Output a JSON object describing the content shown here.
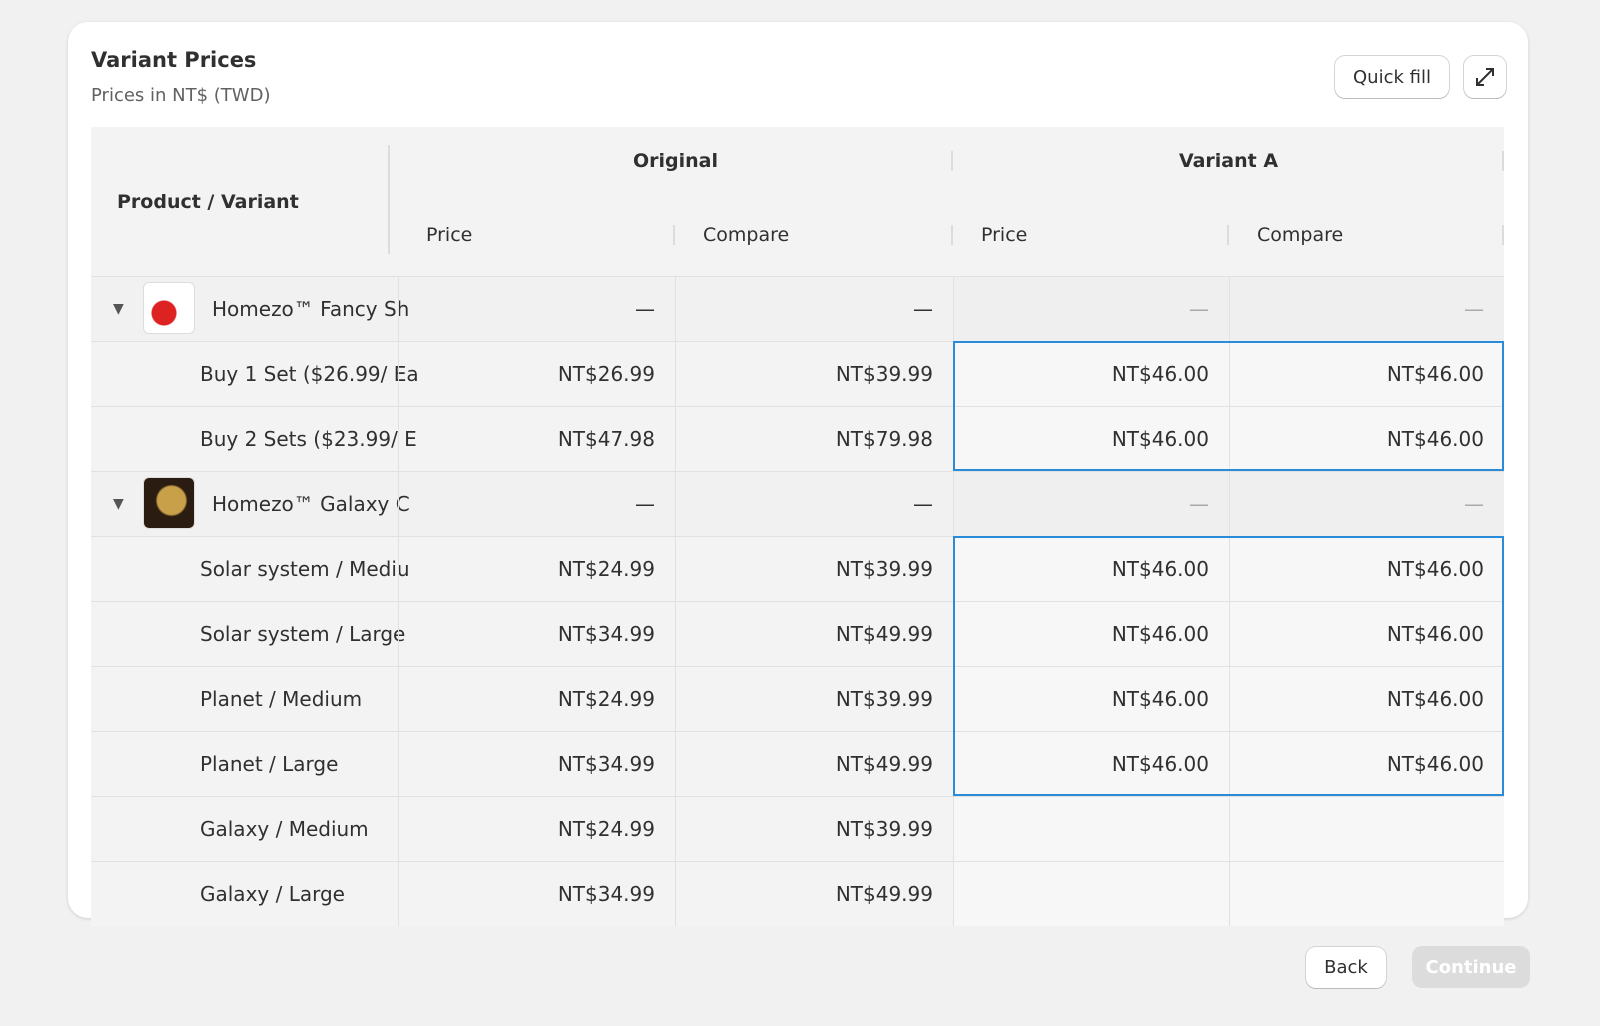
{
  "header": {
    "title": "Variant Prices",
    "subtitle": "Prices in NT$ (TWD)"
  },
  "buttons": {
    "quick_fill": "Quick fill",
    "back": "Back",
    "continue": "Continue"
  },
  "table": {
    "first_column": "Product / Variant",
    "groups": [
      "Original",
      "Variant A"
    ],
    "columns": [
      "Price",
      "Compare",
      "Price",
      "Compare"
    ],
    "rows": [
      {
        "kind": "product",
        "name": "Homezo™ Fancy Sh",
        "cells": [
          "—",
          "—",
          "—",
          "—"
        ]
      },
      {
        "kind": "variant",
        "name": "Buy 1 Set ($26.99/ Ea",
        "cells": [
          "NT$26.99",
          "NT$39.99",
          "NT$46.00",
          "NT$46.00"
        ]
      },
      {
        "kind": "variant",
        "name": "Buy 2 Sets ($23.99/ E",
        "cells": [
          "NT$47.98",
          "NT$79.98",
          "NT$46.00",
          "NT$46.00"
        ]
      },
      {
        "kind": "product",
        "name": "Homezo™ Galaxy C",
        "cells": [
          "—",
          "—",
          "—",
          "—"
        ]
      },
      {
        "kind": "variant",
        "name": "Solar system / Mediu",
        "cells": [
          "NT$24.99",
          "NT$39.99",
          "NT$46.00",
          "NT$46.00"
        ]
      },
      {
        "kind": "variant",
        "name": "Solar system / Large",
        "cells": [
          "NT$34.99",
          "NT$49.99",
          "NT$46.00",
          "NT$46.00"
        ]
      },
      {
        "kind": "variant",
        "name": "Planet / Medium",
        "cells": [
          "NT$24.99",
          "NT$39.99",
          "NT$46.00",
          "NT$46.00"
        ]
      },
      {
        "kind": "variant",
        "name": "Planet / Large",
        "cells": [
          "NT$34.99",
          "NT$49.99",
          "NT$46.00",
          "NT$46.00"
        ]
      },
      {
        "kind": "variant",
        "name": "Galaxy / Medium",
        "cells": [
          "NT$24.99",
          "NT$39.99",
          null,
          null
        ]
      },
      {
        "kind": "variant",
        "name": "Galaxy / Large",
        "cells": [
          "NT$34.99",
          "NT$49.99",
          null,
          null
        ]
      }
    ]
  }
}
